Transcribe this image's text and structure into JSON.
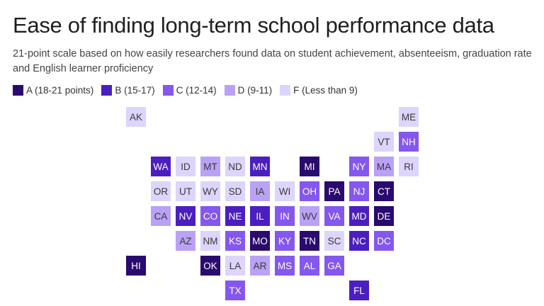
{
  "title": "Ease of finding long-term school performance data",
  "subtitle": "21-point scale based on how easily researchers found data on student achievement, absenteeism, graduation rate and English learner proficiency",
  "colors": {
    "A": "#2a0a6e",
    "B": "#4b1fbf",
    "C": "#8457ef",
    "D": "#b9a2f5",
    "F": "#ddd5fb"
  },
  "text_colors": {
    "A": "#ffffff",
    "B": "#ffffff",
    "C": "#ffffff",
    "D": "#3a3a3a",
    "F": "#3a3a3a"
  },
  "legend": [
    {
      "grade": "A",
      "label": "A (18-21 points)"
    },
    {
      "grade": "B",
      "label": "B (15-17)"
    },
    {
      "grade": "C",
      "label": "C (12-14)"
    },
    {
      "grade": "D",
      "label": "D (9-11)"
    },
    {
      "grade": "F",
      "label": "F (Less than 9)"
    }
  ],
  "chart_data": {
    "type": "tile-grid-map",
    "title": "Ease of finding long-term school performance data",
    "subtitle": "21-point scale based on how easily researchers found data on student achievement, absenteeism, graduation rate and English learner proficiency",
    "states": [
      {
        "abbr": "AK",
        "grade": "F",
        "col": 0,
        "row": 0
      },
      {
        "abbr": "ME",
        "grade": "F",
        "col": 11,
        "row": 0
      },
      {
        "abbr": "VT",
        "grade": "F",
        "col": 10,
        "row": 1
      },
      {
        "abbr": "NH",
        "grade": "C",
        "col": 11,
        "row": 1
      },
      {
        "abbr": "WA",
        "grade": "B",
        "col": 1,
        "row": 2
      },
      {
        "abbr": "ID",
        "grade": "F",
        "col": 2,
        "row": 2
      },
      {
        "abbr": "MT",
        "grade": "D",
        "col": 3,
        "row": 2
      },
      {
        "abbr": "ND",
        "grade": "F",
        "col": 4,
        "row": 2
      },
      {
        "abbr": "MN",
        "grade": "B",
        "col": 5,
        "row": 2
      },
      {
        "abbr": "MI",
        "grade": "A",
        "col": 7,
        "row": 2
      },
      {
        "abbr": "NY",
        "grade": "C",
        "col": 9,
        "row": 2
      },
      {
        "abbr": "MA",
        "grade": "D",
        "col": 10,
        "row": 2
      },
      {
        "abbr": "RI",
        "grade": "F",
        "col": 11,
        "row": 2
      },
      {
        "abbr": "OR",
        "grade": "F",
        "col": 1,
        "row": 3
      },
      {
        "abbr": "UT",
        "grade": "F",
        "col": 2,
        "row": 3
      },
      {
        "abbr": "WY",
        "grade": "F",
        "col": 3,
        "row": 3
      },
      {
        "abbr": "SD",
        "grade": "F",
        "col": 4,
        "row": 3
      },
      {
        "abbr": "IA",
        "grade": "D",
        "col": 5,
        "row": 3
      },
      {
        "abbr": "WI",
        "grade": "F",
        "col": 6,
        "row": 3
      },
      {
        "abbr": "OH",
        "grade": "C",
        "col": 7,
        "row": 3
      },
      {
        "abbr": "PA",
        "grade": "A",
        "col": 8,
        "row": 3
      },
      {
        "abbr": "NJ",
        "grade": "C",
        "col": 9,
        "row": 3
      },
      {
        "abbr": "CT",
        "grade": "A",
        "col": 10,
        "row": 3
      },
      {
        "abbr": "CA",
        "grade": "D",
        "col": 1,
        "row": 4
      },
      {
        "abbr": "NV",
        "grade": "B",
        "col": 2,
        "row": 4
      },
      {
        "abbr": "CO",
        "grade": "C",
        "col": 3,
        "row": 4
      },
      {
        "abbr": "NE",
        "grade": "B",
        "col": 4,
        "row": 4
      },
      {
        "abbr": "IL",
        "grade": "B",
        "col": 5,
        "row": 4
      },
      {
        "abbr": "IN",
        "grade": "C",
        "col": 6,
        "row": 4
      },
      {
        "abbr": "WV",
        "grade": "D",
        "col": 7,
        "row": 4
      },
      {
        "abbr": "VA",
        "grade": "C",
        "col": 8,
        "row": 4
      },
      {
        "abbr": "MD",
        "grade": "B",
        "col": 9,
        "row": 4
      },
      {
        "abbr": "DE",
        "grade": "A",
        "col": 10,
        "row": 4
      },
      {
        "abbr": "AZ",
        "grade": "D",
        "col": 2,
        "row": 5
      },
      {
        "abbr": "NM",
        "grade": "F",
        "col": 3,
        "row": 5
      },
      {
        "abbr": "KS",
        "grade": "C",
        "col": 4,
        "row": 5
      },
      {
        "abbr": "MO",
        "grade": "A",
        "col": 5,
        "row": 5
      },
      {
        "abbr": "KY",
        "grade": "C",
        "col": 6,
        "row": 5
      },
      {
        "abbr": "TN",
        "grade": "A",
        "col": 7,
        "row": 5
      },
      {
        "abbr": "SC",
        "grade": "F",
        "col": 8,
        "row": 5
      },
      {
        "abbr": "NC",
        "grade": "B",
        "col": 9,
        "row": 5
      },
      {
        "abbr": "DC",
        "grade": "C",
        "col": 10,
        "row": 5
      },
      {
        "abbr": "HI",
        "grade": "A",
        "col": 0,
        "row": 6
      },
      {
        "abbr": "OK",
        "grade": "A",
        "col": 3,
        "row": 6
      },
      {
        "abbr": "LA",
        "grade": "F",
        "col": 4,
        "row": 6
      },
      {
        "abbr": "AR",
        "grade": "D",
        "col": 5,
        "row": 6
      },
      {
        "abbr": "MS",
        "grade": "C",
        "col": 6,
        "row": 6
      },
      {
        "abbr": "AL",
        "grade": "C",
        "col": 7,
        "row": 6
      },
      {
        "abbr": "GA",
        "grade": "C",
        "col": 8,
        "row": 6
      },
      {
        "abbr": "TX",
        "grade": "C",
        "col": 4,
        "row": 7
      },
      {
        "abbr": "FL",
        "grade": "B",
        "col": 9,
        "row": 7
      }
    ]
  }
}
